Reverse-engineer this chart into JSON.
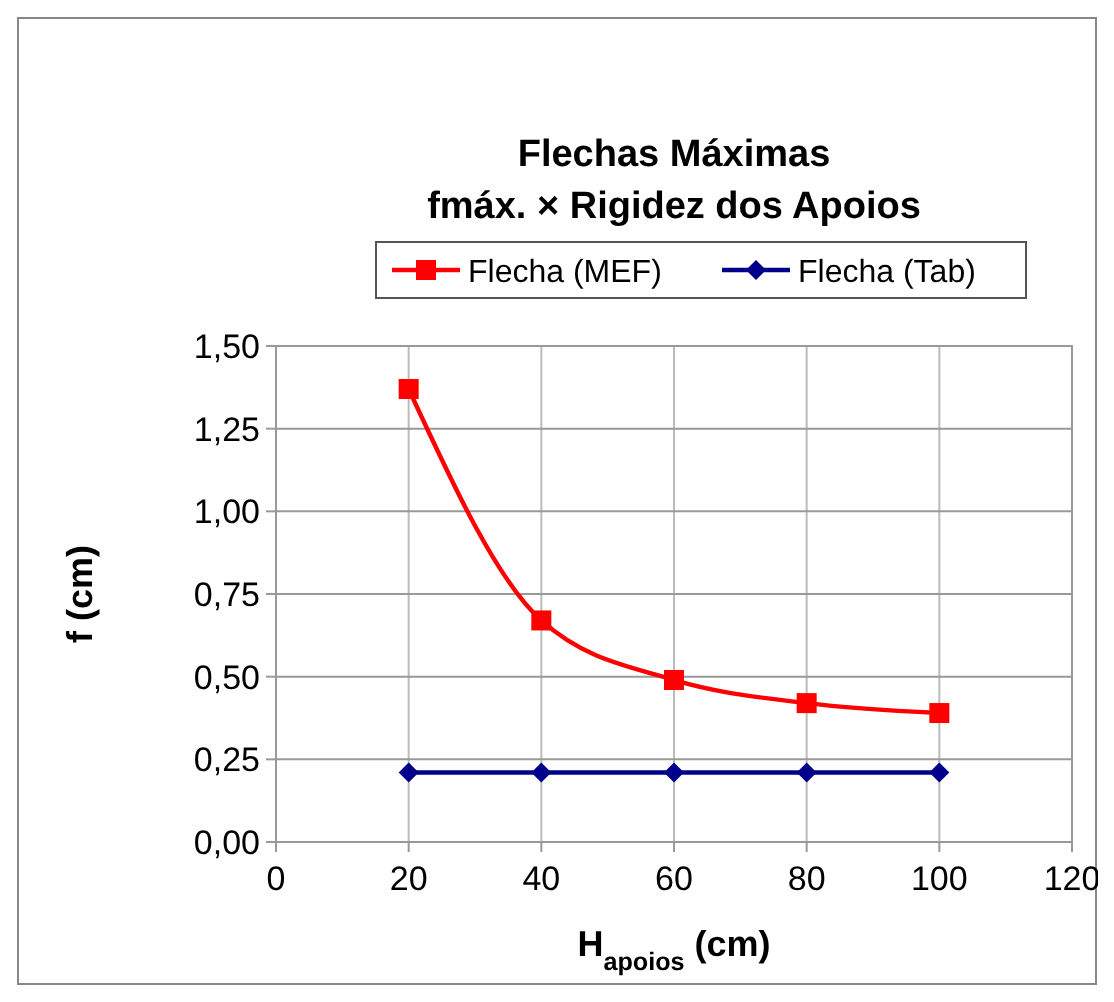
{
  "chart_data": {
    "type": "line",
    "title": "Flechas Máximas\nfmáx. ×  Rigidez dos Apoios",
    "xlabel": "H$_{apoios}$ (cm)",
    "ylabel": "f (cm)",
    "x": [
      20,
      40,
      60,
      80,
      100
    ],
    "series": [
      {
        "name": "Flecha (MEF)",
        "color": "#ff0000",
        "marker": "square",
        "values": [
          1.37,
          0.67,
          0.49,
          0.42,
          0.39
        ]
      },
      {
        "name": "Flecha (Tab)",
        "color": "#00008b",
        "marker": "diamond",
        "values": [
          0.21,
          0.21,
          0.21,
          0.21,
          0.21
        ]
      }
    ],
    "xlim": [
      0,
      120
    ],
    "xticks": [
      0,
      20,
      40,
      60,
      80,
      100,
      120
    ],
    "ylim": [
      0,
      1.5
    ],
    "yticks": [
      {
        "value": 0,
        "label": "0,00"
      },
      {
        "value": 0.25,
        "label": "0,25"
      },
      {
        "value": 0.5,
        "label": "0,50"
      },
      {
        "value": 0.75,
        "label": "0,75"
      },
      {
        "value": 1,
        "label": "1,00"
      },
      {
        "value": 1.25,
        "label": "1,25"
      },
      {
        "value": 1.5,
        "label": "1,50"
      }
    ],
    "grid": true,
    "legend": "top",
    "line_style": "solid"
  }
}
